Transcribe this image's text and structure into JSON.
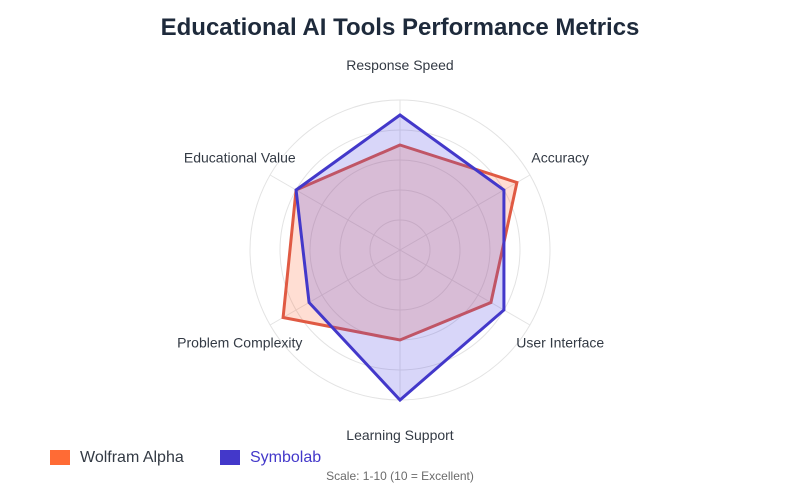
{
  "chart_data": {
    "type": "radar",
    "title": "Educational AI Tools Performance Metrics",
    "axes": [
      "Response Speed",
      "Accuracy",
      "User Interface",
      "Learning Support",
      "Problem Complexity",
      "Educational Value"
    ],
    "range": [
      0,
      10
    ],
    "grid": true,
    "legend_position": "bottom-left",
    "series": [
      {
        "name": "Wolfram Alpha",
        "values": [
          7,
          9,
          7,
          6,
          9,
          8
        ],
        "stroke": "#e05a43",
        "fill": "#ff6b35",
        "swatch": "#ff6b35",
        "text_color": "#333a44"
      },
      {
        "name": "Symbolab",
        "values": [
          9,
          8,
          8,
          10,
          7,
          8
        ],
        "stroke": "#4338ca",
        "fill": "#4f46e5",
        "swatch": "#4338ca",
        "text_color": "#4338ca"
      }
    ],
    "note": "Scale: 1-10 (10 = Excellent)"
  }
}
